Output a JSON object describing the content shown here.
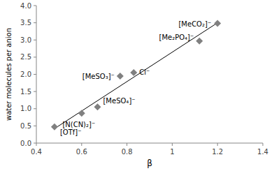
{
  "chart_data": {
    "type": "scatter",
    "x_label": "β",
    "y_label": "water molecules per anion",
    "xlim": [
      0.4,
      1.4
    ],
    "xticks": [
      0.4,
      0.6,
      0.8,
      1,
      1.2,
      1.4
    ],
    "ylim": [
      0,
      4
    ],
    "yticks": [
      {
        "value": 0,
        "label": "0.0"
      },
      0.5,
      {
        "value": 1,
        "label": "1.0"
      },
      1.5,
      {
        "value": 2,
        "label": "2.0"
      },
      2.5,
      {
        "value": 3,
        "label": "3.0"
      },
      3.5,
      {
        "value": 4,
        "label": "4.0"
      }
    ],
    "grid": false,
    "series": [
      {
        "type": "scatter",
        "marker": "diamond",
        "color": "#808080",
        "x": [
          0.48,
          0.6,
          0.67,
          0.77,
          0.83,
          1.12,
          1.2
        ],
        "values": [
          0.47,
          0.87,
          1.05,
          1.95,
          2.05,
          2.97,
          3.48
        ],
        "labels": [
          "[OTf]⁻",
          "[N(CN)₂]⁻",
          "[MeSO₄]⁻",
          "[MeSO₃]⁻",
          "Cl⁻",
          "[Me₂PO₄]⁻",
          "[MeCO₂]⁻"
        ]
      },
      {
        "type": "line",
        "line_style": "solid",
        "color": "#000000",
        "x": [
          0.48,
          1.2
        ],
        "values": [
          0.42,
          3.5
        ]
      }
    ]
  }
}
